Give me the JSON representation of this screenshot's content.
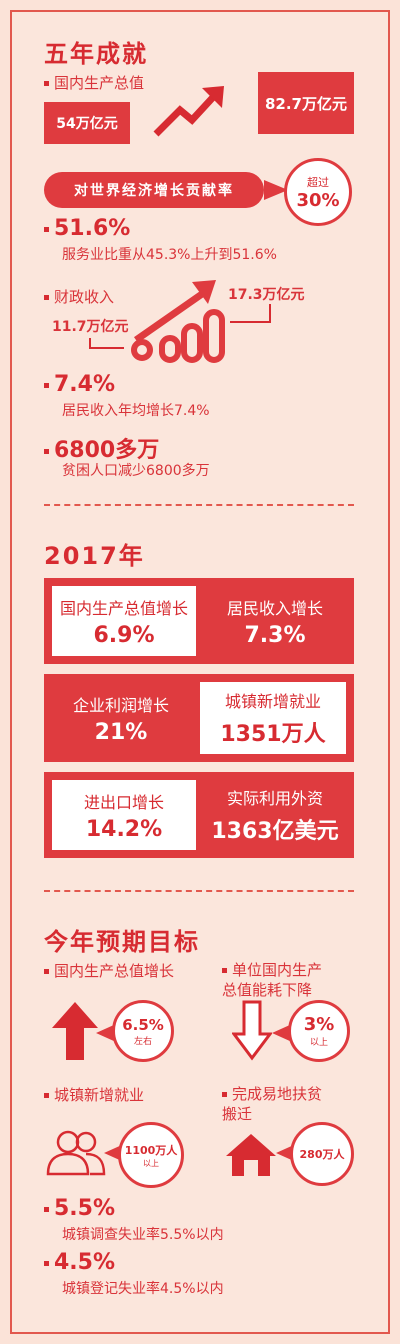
{
  "section1": {
    "title": "五年成就",
    "gdp_label": "国内生产总值",
    "gdp_from": "54万亿元",
    "gdp_to": "82.7万亿元",
    "contrib_label": "对世界经济增长贡献率",
    "contrib_circle_top": "超过",
    "contrib_circle_value": "30%",
    "service_value": "51.6%",
    "service_text": "服务业比重从45.3%上升到51.6%",
    "fiscal_label": "财政收入",
    "fiscal_from": "11.7万亿元",
    "fiscal_to": "17.3万亿元",
    "income_value": "7.4%",
    "income_text": "居民收入年均增长7.4%",
    "poverty_value": "6800多万",
    "poverty_text": "贫困人口减少6800多万"
  },
  "section2": {
    "title": "2017年",
    "cells": [
      {
        "title": "国内生产总值增长",
        "value": "6.9%"
      },
      {
        "title": "居民收入增长",
        "value": "7.3%"
      },
      {
        "title": "企业利润增长",
        "value": "21%"
      },
      {
        "title": "城镇新增就业",
        "value": "1351万人"
      },
      {
        "title": "进出口增长",
        "value": "14.2%"
      },
      {
        "title": "实际利用外资",
        "value": "1363亿美元"
      }
    ]
  },
  "section3": {
    "title": "今年预期目标",
    "gdp_label": "国内生产总值增长",
    "gdp_value": "6.5%",
    "gdp_sub": "左右",
    "energy_label_1": "单位国内生产",
    "energy_label_2": "总值能耗下降",
    "energy_value": "3%",
    "energy_sub": "以上",
    "jobs_label": "城镇新增就业",
    "jobs_value": "1100万人",
    "jobs_sub": "以上",
    "relocation_label_1": "完成易地扶贫",
    "relocation_label_2": "搬迁",
    "relocation_value": "280万人",
    "unemp1_value": "5.5%",
    "unemp1_text": "城镇调查失业率5.5%以内",
    "unemp2_value": "4.5%",
    "unemp2_text": "城镇登记失业率4.5%以内"
  },
  "colors": {
    "accent": "#df3b3f",
    "background": "#fbe6dc"
  },
  "icons": [
    "arrow-up-right-icon",
    "growth-arrow-icon",
    "arrow-up-icon",
    "arrow-down-icon",
    "people-icon",
    "house-icon"
  ]
}
